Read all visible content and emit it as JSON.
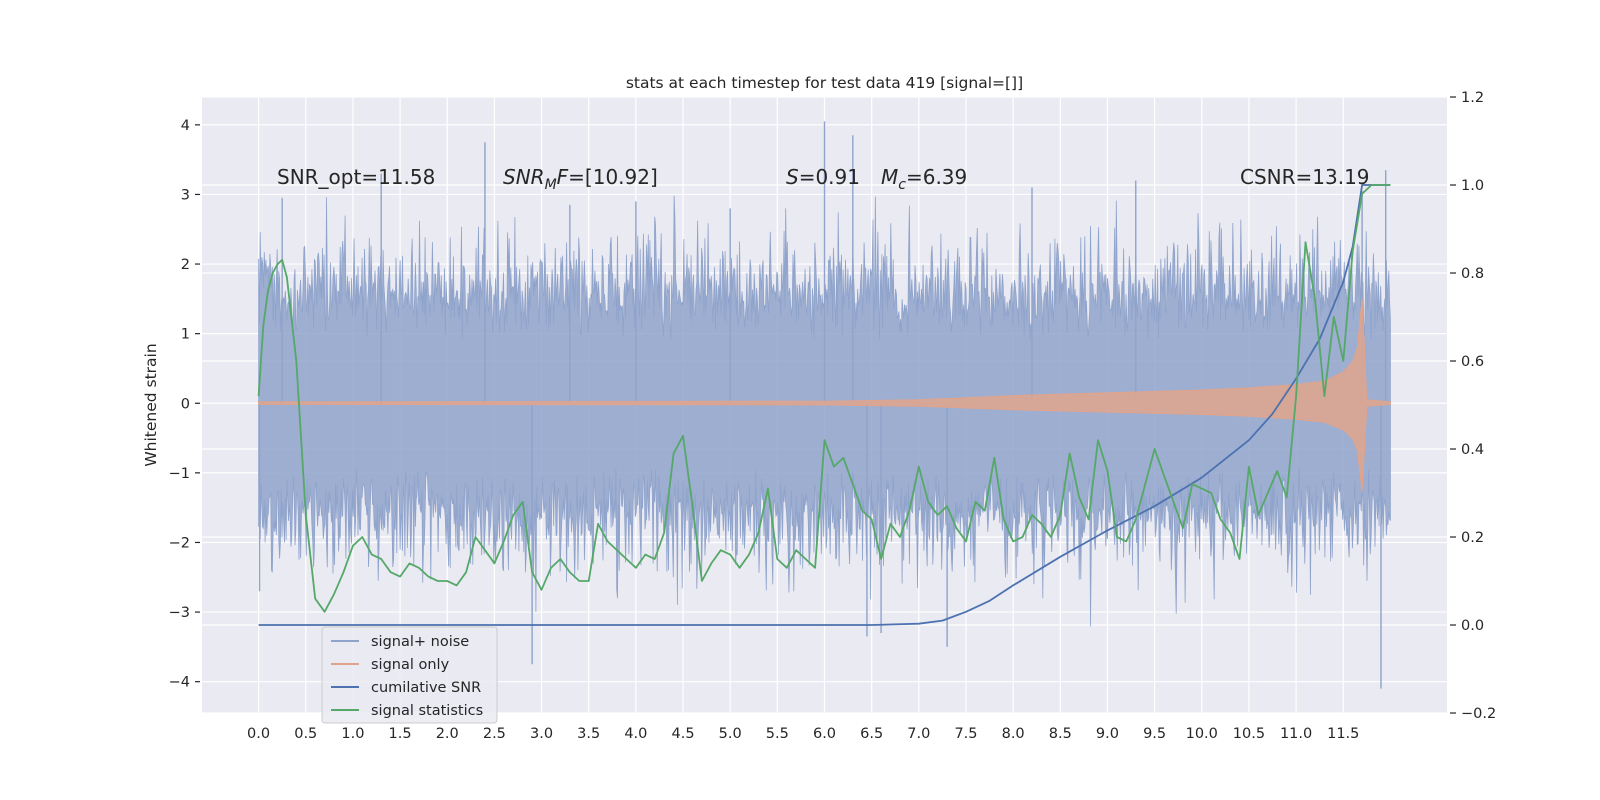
{
  "chart_data": {
    "type": "line",
    "title": "stats at each timestep for test data 419 [signal=[]]",
    "xlabel": "",
    "ylabel": "Whitened strain",
    "y2label": "",
    "xlim": [
      -0.6,
      12.6
    ],
    "ylim": [
      -4.45,
      4.4
    ],
    "y2lim": [
      -0.2,
      1.2
    ],
    "x_ticks": [
      "0.0",
      "0.5",
      "1.0",
      "1.5",
      "2.0",
      "2.5",
      "3.0",
      "3.5",
      "4.0",
      "4.5",
      "5.0",
      "5.5",
      "6.0",
      "6.5",
      "7.0",
      "7.5",
      "8.0",
      "8.5",
      "9.0",
      "9.5",
      "10.0",
      "10.5",
      "11.0",
      "11.5"
    ],
    "y_ticks": [
      "4",
      "3",
      "2",
      "1",
      "0",
      "−1",
      "−2",
      "−3",
      "−4"
    ],
    "y2_ticks": [
      "1.2",
      "1.0",
      "0.8",
      "0.6",
      "0.4",
      "0.2",
      "0.0",
      "−0.2"
    ],
    "grid": true,
    "legend_position": "lower-left",
    "annotations": [
      {
        "id": "snr-opt",
        "parts": [
          {
            "t": "SNR_opt=11.58",
            "style": "normal"
          }
        ]
      },
      {
        "id": "snr-mf",
        "parts": [
          {
            "t": "SNR",
            "style": "italic"
          },
          {
            "t": "M",
            "style": "italic-sub"
          },
          {
            "t": "F",
            "style": "italic"
          },
          {
            "t": "=[10.92]",
            "style": "normal"
          }
        ]
      },
      {
        "id": "s-value",
        "parts": [
          {
            "t": "S",
            "style": "italic"
          },
          {
            "t": "=0.91",
            "style": "normal"
          }
        ]
      },
      {
        "id": "mc-value",
        "parts": [
          {
            "t": "M",
            "style": "italic"
          },
          {
            "t": "c",
            "style": "italic-sub"
          },
          {
            "t": "=6.39",
            "style": "normal"
          }
        ]
      },
      {
        "id": "csnr",
        "parts": [
          {
            "t": "CSNR=13.19",
            "style": "normal"
          }
        ]
      }
    ],
    "series": [
      {
        "name": "signal+ noise",
        "axis": "left",
        "color": "#8fa3cb",
        "x_range": [
          0,
          12.0
        ],
        "typical_range": [
          -1.7,
          1.7
        ],
        "extreme_range": [
          -4.1,
          4.05
        ]
      },
      {
        "name": "signal only",
        "axis": "left",
        "color": "#e0a48c",
        "envelope_x": [
          0.0,
          6.0,
          7.0,
          7.5,
          8.0,
          9.0,
          10.0,
          10.5,
          11.0,
          11.3,
          11.5,
          11.6,
          11.65,
          11.7,
          11.75,
          12.0
        ],
        "envelope_y": [
          0.02,
          0.03,
          0.05,
          0.08,
          0.11,
          0.15,
          0.19,
          0.22,
          0.27,
          0.32,
          0.45,
          0.6,
          0.8,
          1.5,
          0.05,
          0.02
        ]
      },
      {
        "name": "cumilative SNR",
        "axis": "right",
        "color": "#4c72b0",
        "x": [
          0.0,
          6.5,
          7.0,
          7.25,
          7.5,
          7.75,
          8.0,
          8.5,
          9.0,
          9.5,
          10.0,
          10.5,
          10.75,
          11.0,
          11.25,
          11.5,
          11.6,
          11.65,
          11.7,
          12.0
        ],
        "y": [
          0.0,
          0.0,
          0.003,
          0.01,
          0.03,
          0.055,
          0.09,
          0.155,
          0.215,
          0.27,
          0.335,
          0.42,
          0.48,
          0.56,
          0.65,
          0.78,
          0.86,
          0.93,
          1.0,
          1.0
        ]
      },
      {
        "name": "signal statistics",
        "axis": "right",
        "color": "#55a868",
        "x": [
          0.0,
          0.05,
          0.1,
          0.15,
          0.2,
          0.25,
          0.3,
          0.4,
          0.5,
          0.6,
          0.7,
          0.8,
          0.9,
          1.0,
          1.1,
          1.2,
          1.3,
          1.4,
          1.5,
          1.6,
          1.7,
          1.8,
          1.9,
          2.0,
          2.1,
          2.2,
          2.3,
          2.4,
          2.5,
          2.6,
          2.7,
          2.8,
          2.9,
          3.0,
          3.1,
          3.2,
          3.3,
          3.4,
          3.5,
          3.6,
          3.7,
          3.8,
          3.9,
          4.0,
          4.1,
          4.2,
          4.3,
          4.4,
          4.5,
          4.6,
          4.7,
          4.8,
          4.9,
          5.0,
          5.1,
          5.2,
          5.3,
          5.4,
          5.5,
          5.6,
          5.7,
          5.8,
          5.9,
          6.0,
          6.1,
          6.2,
          6.3,
          6.4,
          6.5,
          6.6,
          6.7,
          6.8,
          6.9,
          7.0,
          7.1,
          7.2,
          7.3,
          7.4,
          7.5,
          7.6,
          7.7,
          7.8,
          7.9,
          8.0,
          8.1,
          8.2,
          8.3,
          8.4,
          8.5,
          8.6,
          8.7,
          8.8,
          8.9,
          9.0,
          9.1,
          9.2,
          9.3,
          9.4,
          9.5,
          9.6,
          9.7,
          9.8,
          9.9,
          10.0,
          10.1,
          10.2,
          10.3,
          10.4,
          10.5,
          10.6,
          10.7,
          10.8,
          10.9,
          11.0,
          11.1,
          11.2,
          11.3,
          11.4,
          11.5,
          11.6,
          11.7,
          11.8,
          11.9,
          12.0
        ],
        "y": [
          0.52,
          0.68,
          0.76,
          0.8,
          0.82,
          0.83,
          0.79,
          0.6,
          0.25,
          0.06,
          0.03,
          0.07,
          0.12,
          0.18,
          0.2,
          0.16,
          0.15,
          0.12,
          0.11,
          0.14,
          0.13,
          0.11,
          0.1,
          0.1,
          0.09,
          0.12,
          0.2,
          0.17,
          0.14,
          0.19,
          0.25,
          0.28,
          0.12,
          0.08,
          0.13,
          0.15,
          0.12,
          0.1,
          0.1,
          0.23,
          0.19,
          0.17,
          0.15,
          0.13,
          0.16,
          0.15,
          0.21,
          0.39,
          0.43,
          0.27,
          0.1,
          0.14,
          0.17,
          0.16,
          0.13,
          0.16,
          0.21,
          0.31,
          0.15,
          0.13,
          0.17,
          0.15,
          0.13,
          0.42,
          0.36,
          0.38,
          0.32,
          0.26,
          0.24,
          0.15,
          0.23,
          0.2,
          0.26,
          0.36,
          0.28,
          0.25,
          0.27,
          0.22,
          0.19,
          0.28,
          0.26,
          0.38,
          0.24,
          0.19,
          0.2,
          0.25,
          0.23,
          0.2,
          0.25,
          0.39,
          0.29,
          0.24,
          0.42,
          0.35,
          0.2,
          0.19,
          0.24,
          0.32,
          0.4,
          0.34,
          0.28,
          0.22,
          0.32,
          0.31,
          0.3,
          0.24,
          0.21,
          0.15,
          0.36,
          0.25,
          0.3,
          0.35,
          0.29,
          0.52,
          0.87,
          0.74,
          0.52,
          0.7,
          0.6,
          0.85,
          0.98,
          1.0,
          1.0,
          1.0
        ]
      }
    ]
  }
}
